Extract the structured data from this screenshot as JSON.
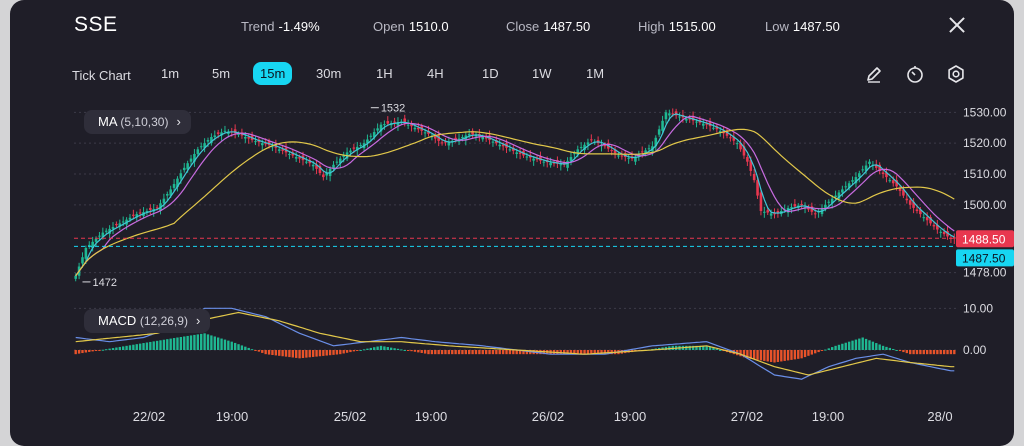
{
  "header": {
    "symbol": "SSE",
    "trend_label": "Trend",
    "trend_value": "-1.49%",
    "open_label": "Open",
    "open_value": "1510.0",
    "close_label": "Close",
    "close_value": "1487.50",
    "high_label": "High",
    "high_value": "1515.00",
    "low_label": "Low",
    "low_value": "1487.50"
  },
  "timeframes": {
    "tick_label": "Tick Chart",
    "items": [
      "1m",
      "5m",
      "15m",
      "30m",
      "1H",
      "4H",
      "1D",
      "1W",
      "1M"
    ],
    "active": "15m"
  },
  "icons": [
    "draw-pen-icon",
    "timer-icon",
    "settings-gear-icon",
    "close-icon"
  ],
  "ma": {
    "name": "MA",
    "params": "(5,10,30)"
  },
  "macd": {
    "name": "MACD",
    "params": "(12,26,9)"
  },
  "colors": {
    "up": "#1fb892",
    "down": "#e8374f",
    "ma5": "#40c8d8",
    "ma10": "#c86be0",
    "ma30": "#e2c84a",
    "macd_line": "#6a8fe8",
    "signal_line": "#e2c84a",
    "hist_pos": "#1fb892",
    "hist_neg": "#e8532a",
    "last_price": "#17d6f2"
  },
  "chart_data": [
    {
      "type": "candlestick",
      "yticks": [
        "1530.00",
        "1520.00",
        "1510.00",
        "1500.00",
        "1478.00"
      ],
      "ylim": [
        1474,
        1534
      ],
      "x_labels": [
        "22/02",
        "19:00",
        "25/02",
        "19:00",
        "26/02",
        "19:00",
        "27/02",
        "19:00",
        "28/0"
      ],
      "max_annotation": "1532",
      "min_annotation": "1472",
      "price_tags": [
        {
          "label": "1488.50",
          "value": 1488.5,
          "color": "#e8374f"
        },
        {
          "label": "1487.50",
          "value": 1487.5,
          "color": "#17d6f2"
        }
      ],
      "close_path": [
        [
          0,
          1477
        ],
        [
          3,
          1486
        ],
        [
          8,
          1491
        ],
        [
          13,
          1494
        ],
        [
          18,
          1497
        ],
        [
          24,
          1499
        ],
        [
          28,
          1505
        ],
        [
          32,
          1512
        ],
        [
          36,
          1518
        ],
        [
          40,
          1522
        ],
        [
          44,
          1524
        ],
        [
          48,
          1523
        ],
        [
          52,
          1521
        ],
        [
          58,
          1519
        ],
        [
          64,
          1516
        ],
        [
          70,
          1513
        ],
        [
          73,
          1509
        ],
        [
          76,
          1513
        ],
        [
          80,
          1517
        ],
        [
          85,
          1520
        ],
        [
          90,
          1526
        ],
        [
          96,
          1527
        ],
        [
          100,
          1525
        ],
        [
          104,
          1523
        ],
        [
          108,
          1520
        ],
        [
          112,
          1521
        ],
        [
          116,
          1523
        ],
        [
          120,
          1522
        ],
        [
          126,
          1519
        ],
        [
          132,
          1516
        ],
        [
          138,
          1514
        ],
        [
          144,
          1513
        ],
        [
          148,
          1518
        ],
        [
          152,
          1521
        ],
        [
          156,
          1519
        ],
        [
          160,
          1516
        ],
        [
          164,
          1515
        ],
        [
          170,
          1519
        ],
        [
          174,
          1530
        ],
        [
          180,
          1528
        ],
        [
          186,
          1526
        ],
        [
          190,
          1524
        ],
        [
          195,
          1520
        ],
        [
          198,
          1514
        ],
        [
          200,
          1508
        ],
        [
          202,
          1498
        ],
        [
          206,
          1497
        ],
        [
          210,
          1499
        ],
        [
          214,
          1500
        ],
        [
          218,
          1497
        ],
        [
          222,
          1501
        ],
        [
          226,
          1505
        ],
        [
          230,
          1509
        ],
        [
          234,
          1514
        ],
        [
          238,
          1510
        ],
        [
          242,
          1506
        ],
        [
          246,
          1500
        ],
        [
          250,
          1496
        ],
        [
          254,
          1492
        ],
        [
          258,
          1489
        ]
      ],
      "series": [
        {
          "name": "MA5",
          "smooth": 4
        },
        {
          "name": "MA10",
          "smooth": 9
        },
        {
          "name": "MA30",
          "smooth": 30
        }
      ]
    },
    {
      "type": "macd",
      "ytick_labels": [
        "10.00",
        "0.00"
      ],
      "ylim": [
        -12,
        12
      ],
      "macd_path": [
        [
          0,
          3
        ],
        [
          10,
          2
        ],
        [
          20,
          3
        ],
        [
          30,
          6
        ],
        [
          38,
          10
        ],
        [
          46,
          10
        ],
        [
          56,
          8
        ],
        [
          66,
          4
        ],
        [
          76,
          1
        ],
        [
          86,
          2
        ],
        [
          96,
          3
        ],
        [
          106,
          2
        ],
        [
          120,
          1
        ],
        [
          140,
          -1
        ],
        [
          156,
          -1
        ],
        [
          170,
          1
        ],
        [
          186,
          2
        ],
        [
          196,
          -1
        ],
        [
          206,
          -6
        ],
        [
          214,
          -7
        ],
        [
          222,
          -4
        ],
        [
          230,
          -2
        ],
        [
          238,
          -1
        ],
        [
          246,
          -3
        ],
        [
          258,
          -5
        ]
      ],
      "signal_path": [
        [
          0,
          2
        ],
        [
          12,
          3
        ],
        [
          24,
          4
        ],
        [
          36,
          7
        ],
        [
          48,
          9
        ],
        [
          60,
          7
        ],
        [
          72,
          4
        ],
        [
          84,
          2
        ],
        [
          96,
          2
        ],
        [
          110,
          1
        ],
        [
          130,
          0
        ],
        [
          150,
          -1
        ],
        [
          170,
          0
        ],
        [
          186,
          1
        ],
        [
          196,
          -1
        ],
        [
          206,
          -4
        ],
        [
          216,
          -6
        ],
        [
          226,
          -4
        ],
        [
          236,
          -2
        ],
        [
          246,
          -3
        ],
        [
          258,
          -4
        ]
      ],
      "hist_path": [
        [
          0,
          -1
        ],
        [
          15,
          1
        ],
        [
          30,
          3
        ],
        [
          38,
          4
        ],
        [
          46,
          2
        ],
        [
          56,
          -1
        ],
        [
          66,
          -2
        ],
        [
          78,
          -1
        ],
        [
          90,
          1
        ],
        [
          104,
          -1
        ],
        [
          120,
          -1
        ],
        [
          140,
          -1
        ],
        [
          160,
          -1
        ],
        [
          176,
          1
        ],
        [
          186,
          1
        ],
        [
          198,
          -2
        ],
        [
          206,
          -3
        ],
        [
          214,
          -2
        ],
        [
          224,
          1
        ],
        [
          232,
          3
        ],
        [
          238,
          1
        ],
        [
          246,
          -1
        ],
        [
          258,
          -1
        ]
      ]
    }
  ]
}
